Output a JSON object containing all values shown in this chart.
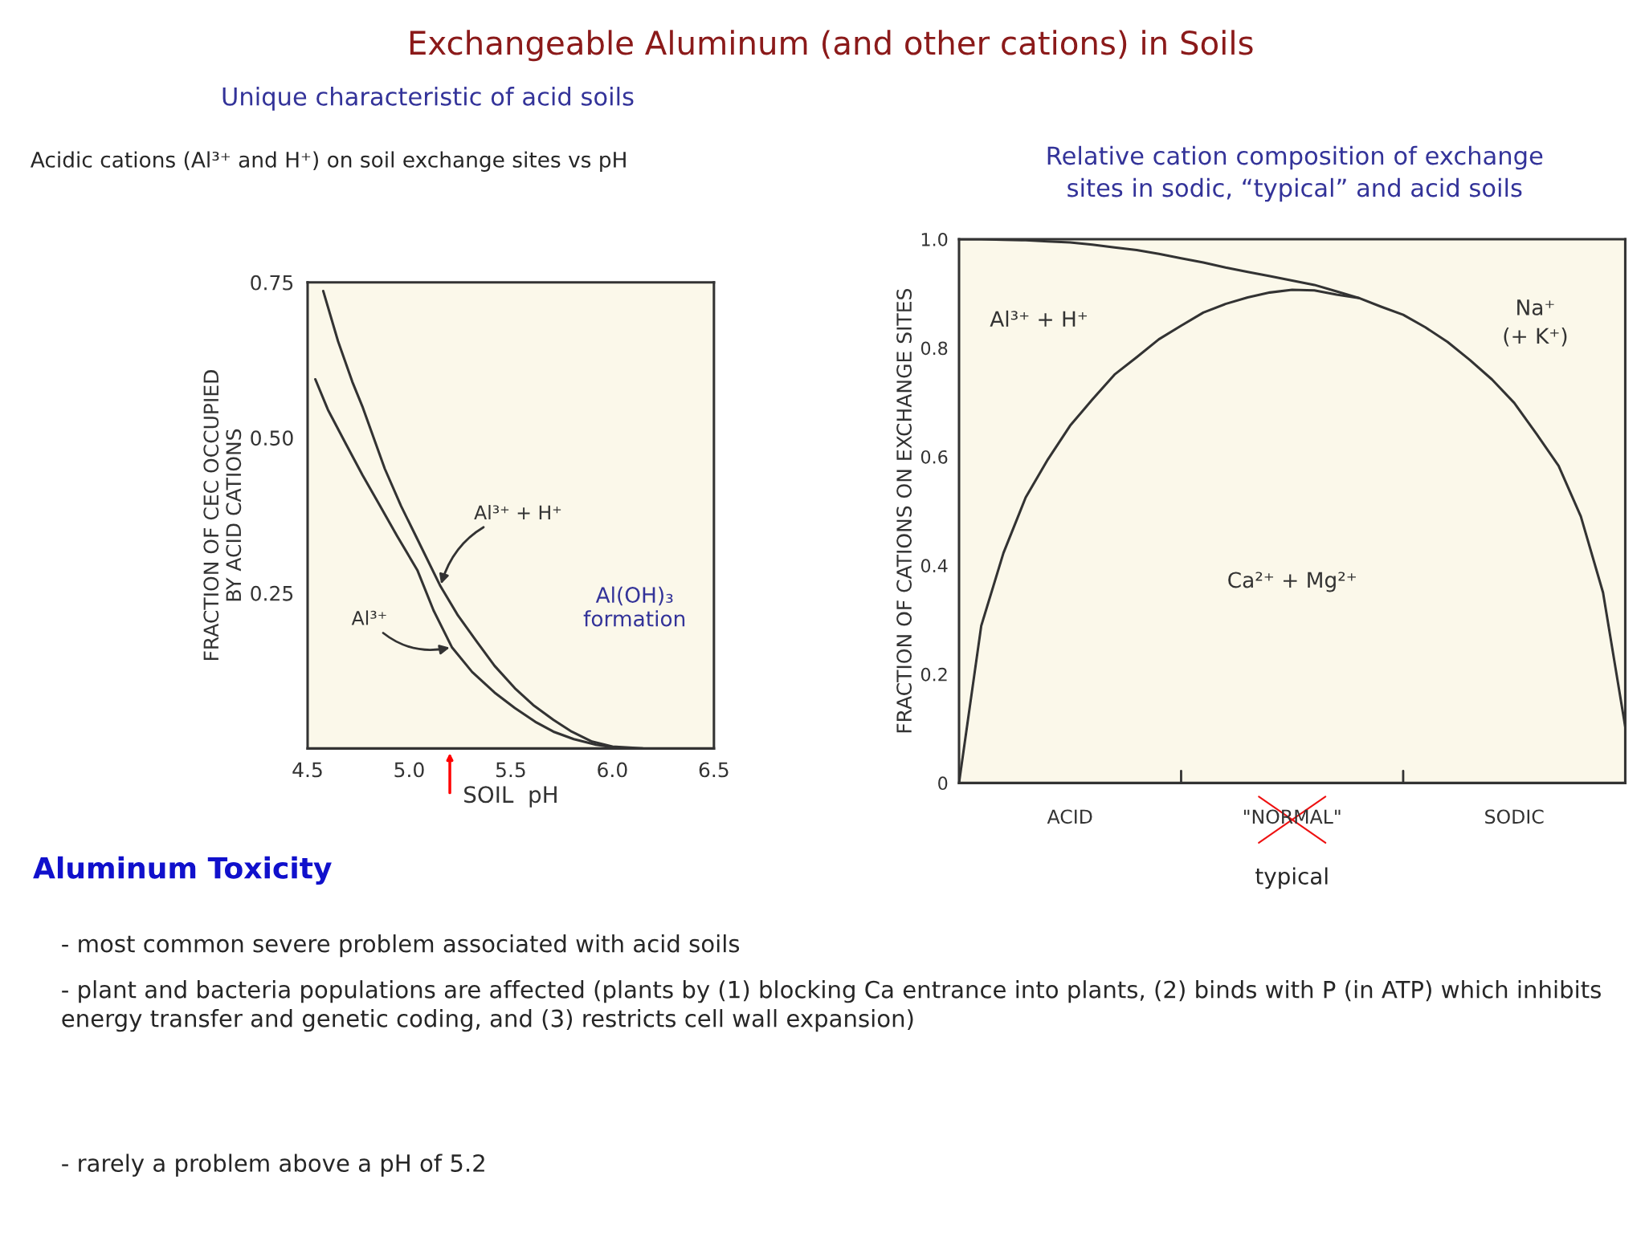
{
  "chart_data": [
    {
      "type": "other",
      "title": "Exchangeable Aluminum (and other cations) in Soils"
    },
    {
      "type": "line",
      "title": "Unique characteristic of acid soils",
      "subtitle": "Acidic cations (Al³⁺ and H⁺) on soil exchange sites vs pH",
      "xlabel": "SOIL  pH",
      "ylabel": "FRACTION OF CEC OCCUPIED\nBY ACID CATIONS",
      "series": [
        {
          "color": "#333333",
          "x": [
            4.577,
            4.65,
            4.72,
            4.77,
            4.88,
            4.96,
            5.04,
            5.154,
            5.24,
            5.33,
            5.42,
            5.52,
            5.61,
            5.71,
            5.8,
            5.9,
            6.0,
            6.15
          ],
          "values": [
            0.736,
            0.655,
            0.59,
            0.55,
            0.45,
            0.39,
            0.337,
            0.261,
            0.214,
            0.173,
            0.133,
            0.097,
            0.07,
            0.046,
            0.027,
            0.011,
            0.003,
            0
          ]
        },
        {
          "color": "#333333",
          "x": [
            4.538,
            4.6,
            4.69,
            4.77,
            4.85,
            4.94,
            5.04,
            5.12,
            5.21,
            5.31,
            5.42,
            5.52,
            5.62,
            5.71,
            5.81,
            5.92,
            6.04
          ],
          "values": [
            0.594,
            0.545,
            0.489,
            0.44,
            0.394,
            0.342,
            0.287,
            0.222,
            0.163,
            0.123,
            0.09,
            0.065,
            0.043,
            0.027,
            0.015,
            0.006,
            0
          ]
        }
      ],
      "xlim": [
        4.5,
        6.5
      ],
      "xticks": [
        4.5,
        {
          "value": 5.0,
          "label": "5.0"
        },
        5.5,
        {
          "value": 6.0,
          "label": "6.0"
        },
        6.5
      ],
      "ylim": [
        0,
        0.75
      ],
      "yticks": [
        {
          "value": 0.25,
          "label": "0.25"
        },
        {
          "value": 0.5,
          "label": "0.50"
        },
        0.75
      ],
      "annotations": [
        {
          "text": "Al³⁺ + H⁺",
          "x": 5.154,
          "y": 0.261
        },
        {
          "text": "Al³⁺",
          "x": 5.21,
          "y": 0.163
        },
        "Al(OH)₃\nformation"
      ],
      "grid": false,
      "legend": false,
      "marker": "none",
      "line_style": "solid"
    },
    {
      "type": "line",
      "title": "Relative cation composition of exchange\nsites in sodic, “typical” and acid soils",
      "ylabel": "FRACTION OF CATIONS ON EXCHANGE SITES",
      "series": [
        {
          "color": "#333333",
          "values": [
            1.0,
            1.0,
            0.999,
            0.998,
            0.996,
            0.994,
            0.99,
            0.985,
            0.98,
            0.973,
            0.965,
            0.957,
            0.948,
            0.94,
            0.932,
            0.924,
            0.916,
            0.904,
            0.892,
            null,
            null,
            null,
            null,
            null,
            null,
            null,
            null,
            null,
            null,
            null,
            null
          ]
        },
        {
          "color": "#333333",
          "values": [
            0,
            0.289,
            0.423,
            0.525,
            0.595,
            0.657,
            0.705,
            0.751,
            0.783,
            0.816,
            0.841,
            0.865,
            0.881,
            0.893,
            0.902,
            0.907,
            0.906,
            0.898,
            0.892,
            0.876,
            0.861,
            0.838,
            0.811,
            0.778,
            0.742,
            0.699,
            0.642,
            0.583,
            0.49,
            0.35,
            0.103
          ]
        }
      ],
      "categories": [
        null,
        null,
        null,
        null,
        null,
        null,
        null,
        null,
        null,
        null,
        null,
        null,
        null,
        null,
        null,
        null,
        null,
        null,
        null,
        null,
        null,
        null,
        null,
        null,
        null,
        null,
        null,
        null,
        null,
        null,
        null
      ],
      "ylim": [
        0,
        1.0
      ],
      "yticks": [
        0,
        0.2,
        0.4,
        0.6,
        0.8,
        {
          "value": 1.0,
          "label": "1.0"
        }
      ],
      "annotations": [
        "Al³⁺ + H⁺",
        "Na⁺\n(+ K⁺)",
        "Ca²⁺ + Mg²⁺",
        "ACID",
        "\"NORMAL\"",
        "SODIC",
        "typical"
      ],
      "grid": false,
      "legend": false,
      "marker": "none",
      "line_style": "solid"
    },
    {
      "type": "other",
      "title": "Aluminum Toxicity",
      "annotations": [
        "- most common severe problem associated with acid soils",
        "- plant and bacteria populations are affected (plants by (1) blocking Ca entrance into plants, (2) binds with P (in ATP) which inhibits energy transfer and genetic coding, and (3) restricts cell wall expansion)",
        "- rarely a problem above a pH of 5.2"
      ]
    }
  ]
}
